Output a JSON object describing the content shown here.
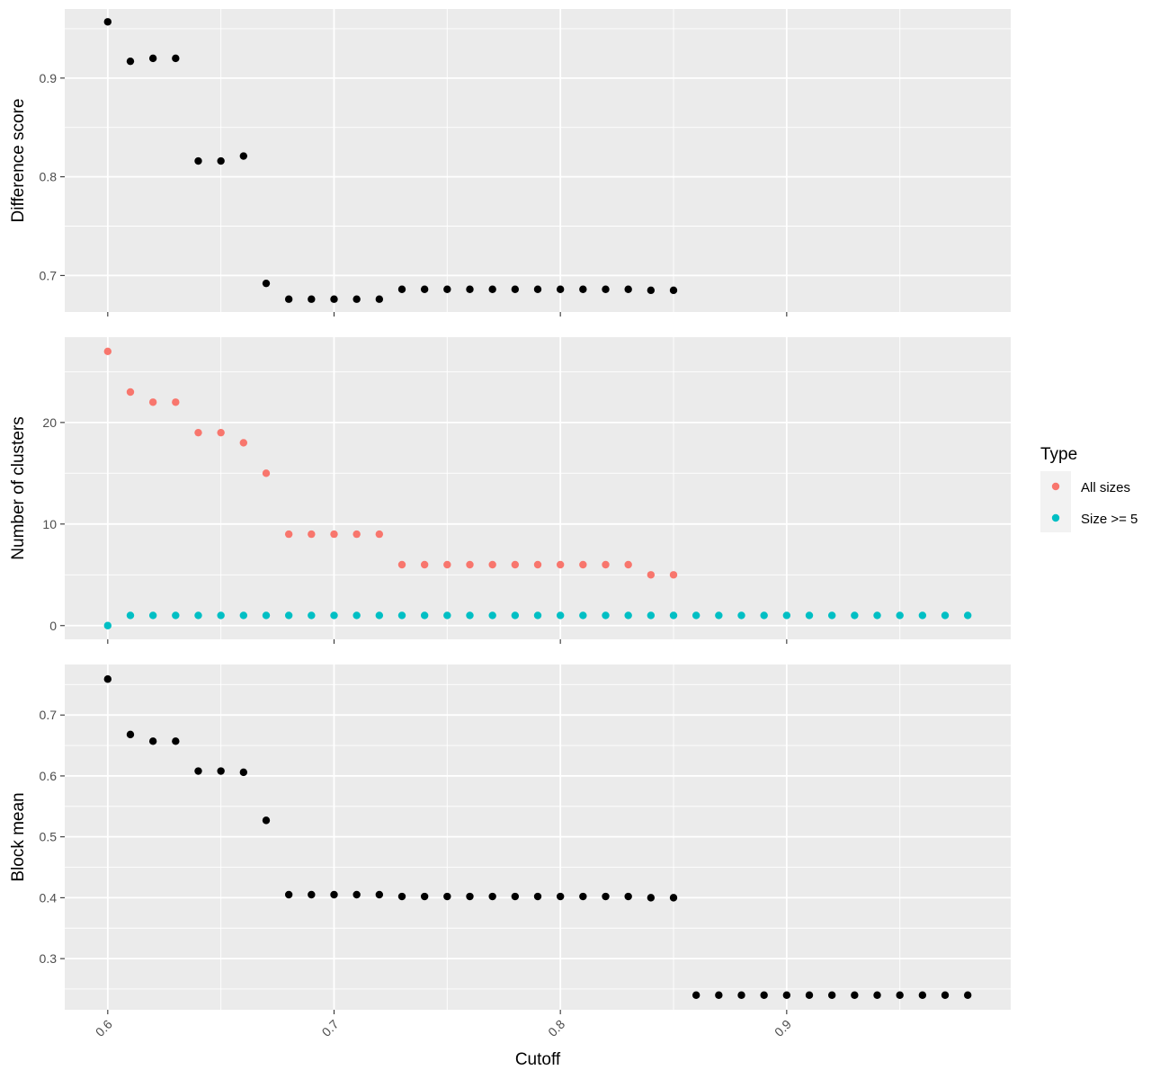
{
  "x_axis": {
    "title": "Cutoff",
    "ticks": [
      0.6,
      0.7,
      0.8,
      0.9
    ],
    "tick_labels": [
      "0.6",
      "0.7",
      "0.8",
      "0.9"
    ],
    "range": [
      0.581,
      0.999
    ]
  },
  "legend": {
    "title": "Type",
    "entries": [
      {
        "label": "All sizes",
        "color": "#F8766D"
      },
      {
        "label": "Size >= 5",
        "color": "#00BFC4"
      }
    ],
    "placement": "right"
  },
  "colors": {
    "panel_bg": "#EBEBEB",
    "grid": "#FFFFFF",
    "point_black": "#000000"
  },
  "chart_data": [
    {
      "type": "scatter",
      "ylabel": "Difference score",
      "ylim": [
        0.663,
        0.97
      ],
      "yticks": [
        0.7,
        0.8,
        0.9
      ],
      "ytick_labels": [
        "0.7",
        "0.8",
        "0.9"
      ],
      "grid": true,
      "series": [
        {
          "color": "#000000",
          "x": [
            0.6,
            0.61,
            0.62,
            0.63,
            0.64,
            0.65,
            0.66,
            0.67,
            0.68,
            0.69,
            0.7,
            0.71,
            0.72,
            0.73,
            0.74,
            0.75,
            0.76,
            0.77,
            0.78,
            0.79,
            0.8,
            0.81,
            0.82,
            0.83,
            0.84,
            0.85
          ],
          "y": [
            0.957,
            0.917,
            0.92,
            0.92,
            0.816,
            0.816,
            0.821,
            0.692,
            0.676,
            0.676,
            0.676,
            0.676,
            0.676,
            0.686,
            0.686,
            0.686,
            0.686,
            0.686,
            0.686,
            0.686,
            0.686,
            0.686,
            0.686,
            0.686,
            0.685,
            0.685
          ]
        }
      ]
    },
    {
      "type": "scatter",
      "ylabel": "Number of clusters",
      "ylim": [
        -1.35,
        28.4
      ],
      "yticks": [
        0,
        10,
        20
      ],
      "ytick_labels": [
        "0",
        "10",
        "20"
      ],
      "grid": true,
      "series": [
        {
          "name": "All sizes",
          "color": "#F8766D",
          "x": [
            0.6,
            0.61,
            0.62,
            0.63,
            0.64,
            0.65,
            0.66,
            0.67,
            0.68,
            0.69,
            0.7,
            0.71,
            0.72,
            0.73,
            0.74,
            0.75,
            0.76,
            0.77,
            0.78,
            0.79,
            0.8,
            0.81,
            0.82,
            0.83,
            0.84,
            0.85
          ],
          "y": [
            27,
            23,
            22,
            22,
            19,
            19,
            18,
            15,
            9,
            9,
            9,
            9,
            9,
            6,
            6,
            6,
            6,
            6,
            6,
            6,
            6,
            6,
            6,
            6,
            5,
            5
          ]
        },
        {
          "name": "Size >= 5",
          "color": "#00BFC4",
          "x": [
            0.6,
            0.61,
            0.62,
            0.63,
            0.64,
            0.65,
            0.66,
            0.67,
            0.68,
            0.69,
            0.7,
            0.71,
            0.72,
            0.73,
            0.74,
            0.75,
            0.76,
            0.77,
            0.78,
            0.79,
            0.8,
            0.81,
            0.82,
            0.83,
            0.84,
            0.85,
            0.86,
            0.87,
            0.88,
            0.89,
            0.9,
            0.91,
            0.92,
            0.93,
            0.94,
            0.95,
            0.96,
            0.97,
            0.98
          ],
          "y": [
            0,
            1,
            1,
            1,
            1,
            1,
            1,
            1,
            1,
            1,
            1,
            1,
            1,
            1,
            1,
            1,
            1,
            1,
            1,
            1,
            1,
            1,
            1,
            1,
            1,
            1,
            1,
            1,
            1,
            1,
            1,
            1,
            1,
            1,
            1,
            1,
            1,
            1,
            1
          ]
        }
      ]
    },
    {
      "type": "scatter",
      "ylabel": "Block mean",
      "ylim": [
        0.216,
        0.783
      ],
      "yticks": [
        0.3,
        0.4,
        0.5,
        0.6,
        0.7
      ],
      "ytick_labels": [
        "0.3",
        "0.4",
        "0.5",
        "0.6",
        "0.7"
      ],
      "grid": true,
      "series": [
        {
          "color": "#000000",
          "x": [
            0.6,
            0.61,
            0.62,
            0.63,
            0.64,
            0.65,
            0.66,
            0.67,
            0.68,
            0.69,
            0.7,
            0.71,
            0.72,
            0.73,
            0.74,
            0.75,
            0.76,
            0.77,
            0.78,
            0.79,
            0.8,
            0.81,
            0.82,
            0.83,
            0.84,
            0.85,
            0.86,
            0.87,
            0.88,
            0.89,
            0.9,
            0.91,
            0.92,
            0.93,
            0.94,
            0.95,
            0.96,
            0.97,
            0.98
          ],
          "y": [
            0.759,
            0.668,
            0.657,
            0.657,
            0.608,
            0.608,
            0.606,
            0.527,
            0.405,
            0.405,
            0.405,
            0.405,
            0.405,
            0.402,
            0.402,
            0.402,
            0.402,
            0.402,
            0.402,
            0.402,
            0.402,
            0.402,
            0.402,
            0.402,
            0.4,
            0.4,
            0.24,
            0.24,
            0.24,
            0.24,
            0.24,
            0.24,
            0.24,
            0.24,
            0.24,
            0.24,
            0.24,
            0.24,
            0.24
          ]
        }
      ]
    }
  ]
}
